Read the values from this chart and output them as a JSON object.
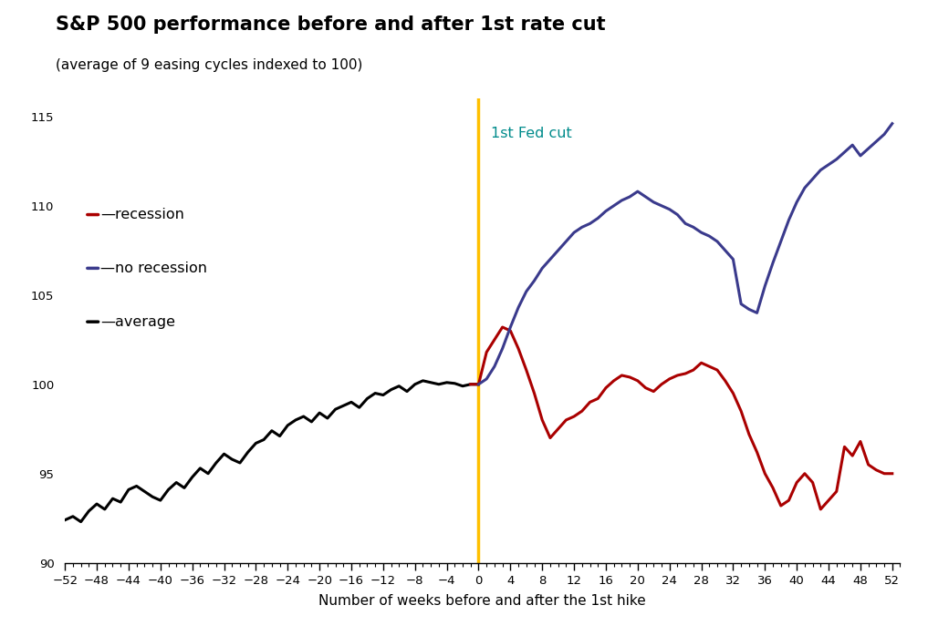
{
  "title": "S&P 500 performance before and after 1st rate cut",
  "subtitle": "(average of 9 easing cycles indexed to 100)",
  "xlabel": "Number of weeks before and after the 1st hike",
  "vline_label": "1st Fed cut",
  "vline_color": "#FFC000",
  "vline_label_color": "#008B8B",
  "recession_color": "#AA0000",
  "no_recession_color": "#3A3A8C",
  "average_color": "#000000",
  "ylim": [
    90,
    116
  ],
  "xlim": [
    -52,
    53
  ],
  "yticks": [
    90,
    95,
    100,
    105,
    110,
    115
  ],
  "xticks": [
    -52,
    -48,
    -44,
    -40,
    -36,
    -32,
    -28,
    -24,
    -20,
    -16,
    -12,
    -8,
    -4,
    0,
    4,
    8,
    12,
    16,
    20,
    24,
    28,
    32,
    36,
    40,
    44,
    48,
    52
  ],
  "average_x": [
    -52,
    -51,
    -50,
    -49,
    -48,
    -47,
    -46,
    -45,
    -44,
    -43,
    -42,
    -41,
    -40,
    -39,
    -38,
    -37,
    -36,
    -35,
    -34,
    -33,
    -32,
    -31,
    -30,
    -29,
    -28,
    -27,
    -26,
    -25,
    -24,
    -23,
    -22,
    -21,
    -20,
    -19,
    -18,
    -17,
    -16,
    -15,
    -14,
    -13,
    -12,
    -11,
    -10,
    -9,
    -8,
    -7,
    -6,
    -5,
    -4,
    -3,
    -2,
    -1,
    0
  ],
  "average_y": [
    92.4,
    92.6,
    92.3,
    92.9,
    93.3,
    93.0,
    93.6,
    93.4,
    94.1,
    94.3,
    94.0,
    93.7,
    93.5,
    94.1,
    94.5,
    94.2,
    94.8,
    95.3,
    95.0,
    95.6,
    96.1,
    95.8,
    95.6,
    96.2,
    96.7,
    96.9,
    97.4,
    97.1,
    97.7,
    98.0,
    98.2,
    97.9,
    98.4,
    98.1,
    98.6,
    98.8,
    99.0,
    98.7,
    99.2,
    99.5,
    99.4,
    99.7,
    99.9,
    99.6,
    100.0,
    100.2,
    100.1,
    100.0,
    100.1,
    100.05,
    99.9,
    100.0,
    100.0
  ],
  "recession_x": [
    -1,
    0,
    1,
    2,
    3,
    4,
    5,
    6,
    7,
    8,
    9,
    10,
    11,
    12,
    13,
    14,
    15,
    16,
    17,
    18,
    19,
    20,
    21,
    22,
    23,
    24,
    25,
    26,
    27,
    28,
    29,
    30,
    31,
    32,
    33,
    34,
    35,
    36,
    37,
    38,
    39,
    40,
    41,
    42,
    43,
    44,
    45,
    46,
    47,
    48,
    49,
    50,
    51,
    52
  ],
  "recession_y": [
    100.0,
    100.0,
    101.8,
    102.5,
    103.2,
    103.0,
    102.0,
    100.8,
    99.5,
    98.0,
    97.0,
    97.5,
    98.0,
    98.2,
    98.5,
    99.0,
    99.2,
    99.8,
    100.2,
    100.5,
    100.4,
    100.2,
    99.8,
    99.6,
    100.0,
    100.3,
    100.5,
    100.6,
    100.8,
    101.2,
    101.0,
    100.8,
    100.2,
    99.5,
    98.5,
    97.2,
    96.2,
    95.0,
    94.2,
    93.2,
    93.5,
    94.5,
    95.0,
    94.5,
    93.0,
    93.5,
    94.0,
    96.5,
    96.0,
    96.8,
    95.5,
    95.2,
    95.0,
    95.0
  ],
  "no_recession_x": [
    0,
    1,
    2,
    3,
    4,
    5,
    6,
    7,
    8,
    9,
    10,
    11,
    12,
    13,
    14,
    15,
    16,
    17,
    18,
    19,
    20,
    21,
    22,
    23,
    24,
    25,
    26,
    27,
    28,
    29,
    30,
    31,
    32,
    33,
    34,
    35,
    36,
    37,
    38,
    39,
    40,
    41,
    42,
    43,
    44,
    45,
    46,
    47,
    48,
    49,
    50,
    51,
    52
  ],
  "no_recession_y": [
    100.0,
    100.3,
    101.0,
    102.0,
    103.2,
    104.3,
    105.2,
    105.8,
    106.5,
    107.0,
    107.5,
    108.0,
    108.5,
    108.8,
    109.0,
    109.3,
    109.7,
    110.0,
    110.3,
    110.5,
    110.8,
    110.5,
    110.2,
    110.0,
    109.8,
    109.5,
    109.0,
    108.8,
    108.5,
    108.3,
    108.0,
    107.5,
    107.0,
    104.5,
    104.2,
    104.0,
    105.5,
    106.8,
    108.0,
    109.2,
    110.2,
    111.0,
    111.5,
    112.0,
    112.3,
    112.6,
    113.0,
    113.4,
    112.8,
    113.2,
    113.6,
    114.0,
    114.6
  ]
}
